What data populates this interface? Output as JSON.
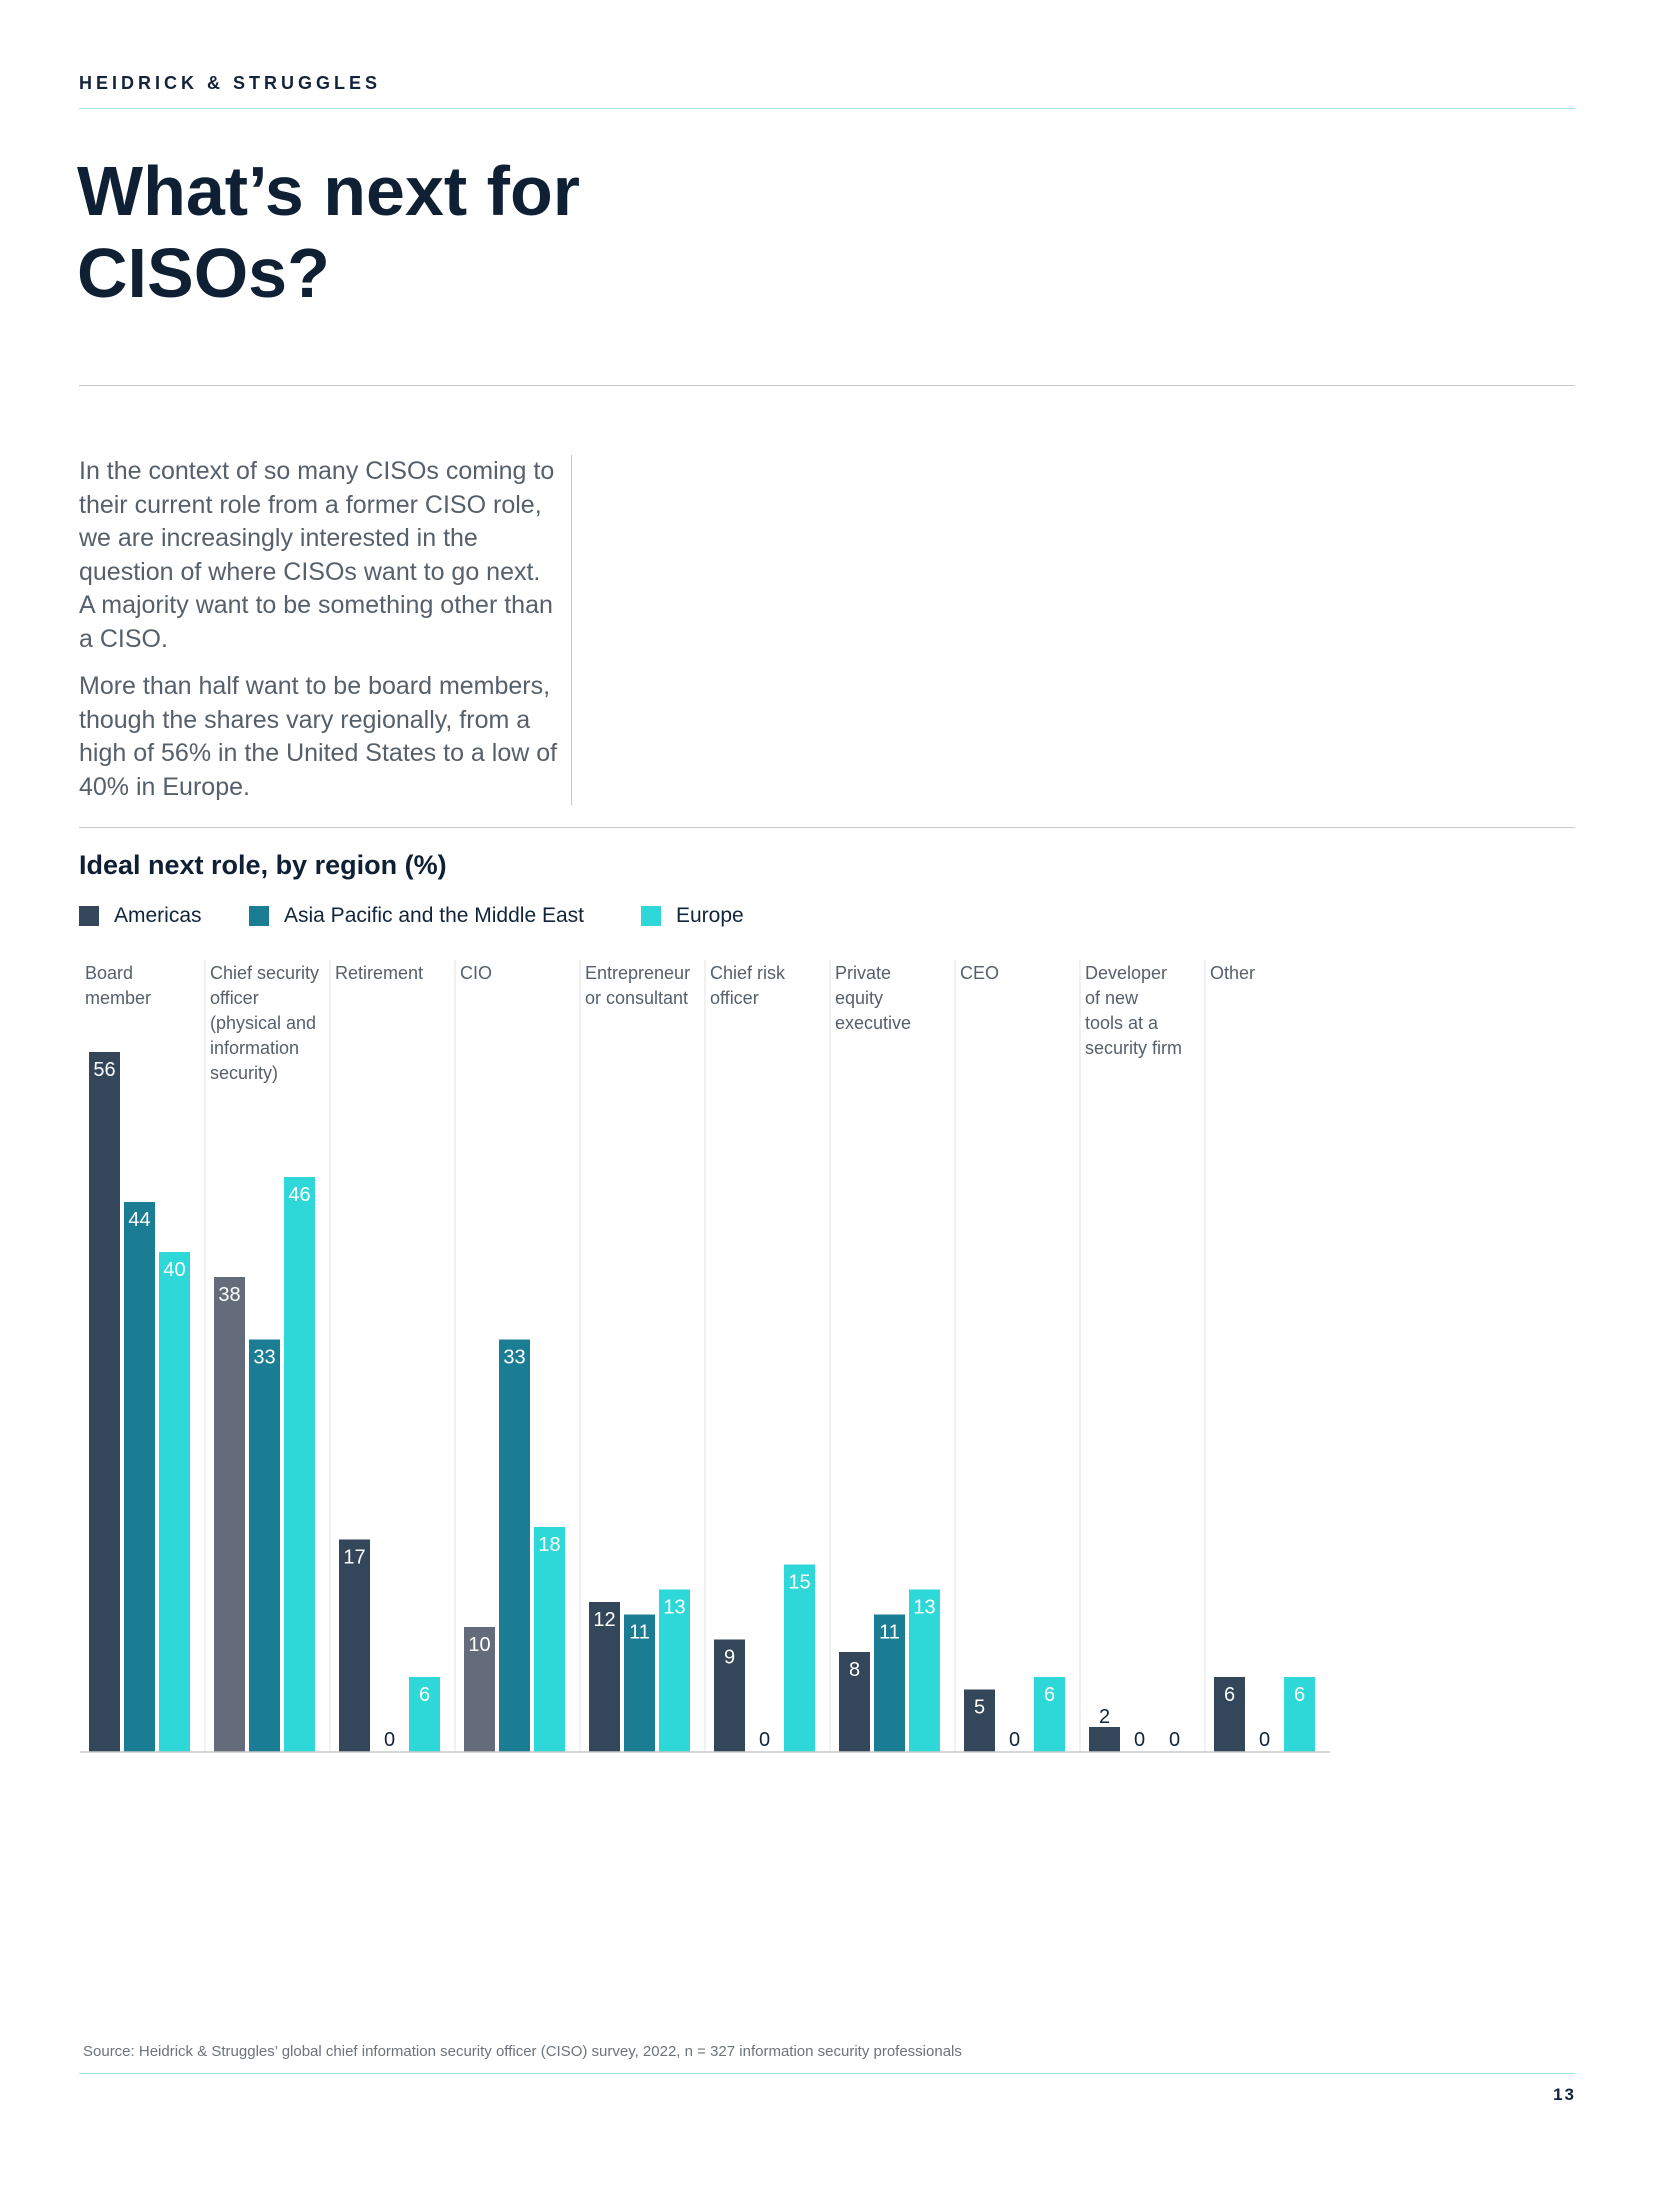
{
  "header": {
    "brand": "HEIDRICK & STRUGGLES"
  },
  "page": {
    "title_line1": "What’s next for",
    "title_line2": "CISOs?",
    "intro_p1": "In the context of so many CISOs coming to their current role from a former CISO role, we are increasingly interested in the question of where CISOs want to go next. A majority want to be something other than a CISO.",
    "intro_p2": "More than half want to be board members, though the shares vary regionally, from a high of 56% in the United States to a low of 40% in Europe.",
    "source": "Source: Heidrick & Struggles’ global chief information security officer (CISO) survey, 2022, n = 327 information security professionals",
    "page_number": "13"
  },
  "chart_data": {
    "type": "bar",
    "title": "Ideal next role, by region (%)",
    "xlabel": "",
    "ylabel": "",
    "ylim": [
      0,
      60
    ],
    "grid": false,
    "legend_position": "top-left",
    "categories": [
      [
        "Board",
        "member"
      ],
      [
        "Chief security",
        "officer",
        "(physical and",
        "information",
        "security)"
      ],
      [
        "Retirement"
      ],
      [
        "CIO"
      ],
      [
        "Entrepreneur",
        "or consultant"
      ],
      [
        "Chief risk",
        "officer"
      ],
      [
        "Private",
        "equity",
        "executive"
      ],
      [
        "CEO"
      ],
      [
        "Developer",
        "of new",
        "tools at a",
        "security firm"
      ],
      [
        "Other"
      ]
    ],
    "series": [
      {
        "name": "Americas",
        "color": "#33465a",
        "values": [
          56,
          38,
          17,
          10,
          12,
          9,
          8,
          5,
          2,
          6
        ]
      },
      {
        "name": "Asia Pacific and the Middle East",
        "color": "#1b7d93",
        "values": [
          44,
          33,
          0,
          33,
          11,
          0,
          11,
          0,
          0,
          0
        ]
      },
      {
        "name": "Europe",
        "color": "#2ed8d8",
        "values": [
          40,
          46,
          6,
          18,
          13,
          15,
          13,
          6,
          0,
          6
        ]
      }
    ],
    "highlight_colors": {
      "muted_americas": "#646b7a"
    },
    "highlight_bars": [
      [
        1,
        0
      ],
      [
        3,
        0
      ]
    ]
  }
}
